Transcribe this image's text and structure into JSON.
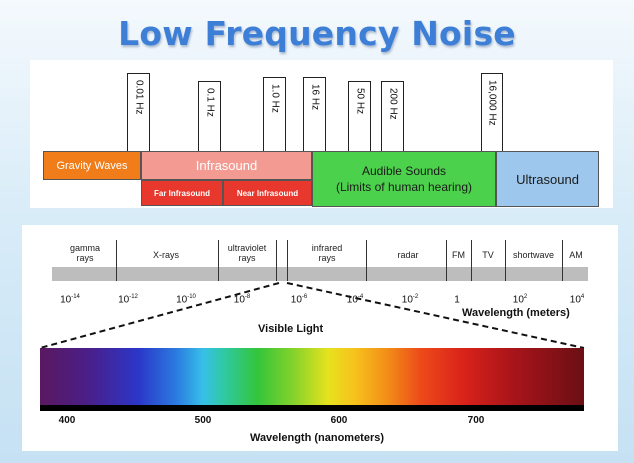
{
  "title": "Low Frequency Noise",
  "frequency_chart": {
    "markers": [
      "0.01 Hz",
      "0.1 Hz",
      "1.0 Hz",
      "16 Hz",
      "50 Hz",
      "200 Hz",
      "16,000 Hz"
    ],
    "bands": {
      "gravity": "Gravity Waves",
      "infrasound": "Infrasound",
      "far_infrasound": "Far Infrasound",
      "near_infrasound": "Near Infrasound",
      "audible_line1": "Audible Sounds",
      "audible_line2": "(Limits of human hearing)",
      "ultrasound": "Ultrasound"
    },
    "colors": {
      "gravity": "#f07d19",
      "infrasound": "#f39a92",
      "far_near": "#e8372c",
      "audible": "#4cd14c",
      "ultrasound": "#9dc7ec"
    }
  },
  "spectrum": {
    "segments": [
      {
        "line1": "gamma",
        "line2": "rays"
      },
      {
        "line1": "X-rays",
        "line2": ""
      },
      {
        "line1": "ultraviolet",
        "line2": "rays"
      },
      {
        "line1": "infrared",
        "line2": "rays"
      },
      {
        "line1": "radar",
        "line2": ""
      },
      {
        "line1": "FM",
        "line2": ""
      },
      {
        "line1": "TV",
        "line2": ""
      },
      {
        "line1": "shortwave",
        "line2": ""
      },
      {
        "line1": "AM",
        "line2": ""
      }
    ],
    "ticks": [
      {
        "base": "10",
        "exp": "-14"
      },
      {
        "base": "10",
        "exp": "-12"
      },
      {
        "base": "10",
        "exp": "-10"
      },
      {
        "base": "10",
        "exp": "-8"
      },
      {
        "base": "10",
        "exp": "-6"
      },
      {
        "base": "10",
        "exp": "-4"
      },
      {
        "base": "10",
        "exp": "-2"
      },
      {
        "base": "1",
        "exp": ""
      },
      {
        "base": "10",
        "exp": "2"
      },
      {
        "base": "10",
        "exp": "4"
      }
    ],
    "axis_label": "Wavelength (meters)"
  },
  "visible": {
    "label": "Visible Light",
    "ticks": [
      "400",
      "500",
      "600",
      "700"
    ],
    "axis_label": "Wavelength (nanometers)"
  }
}
